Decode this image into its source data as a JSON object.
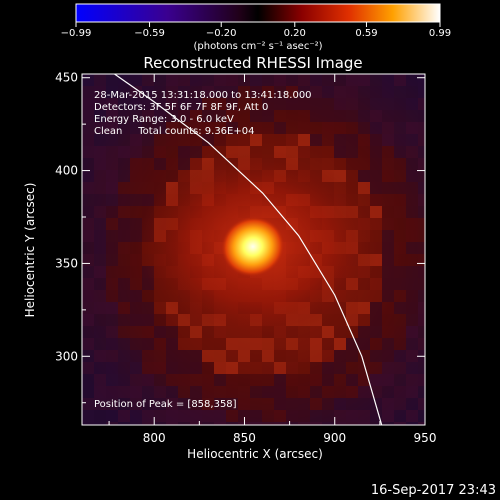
{
  "chart_data": {
    "type": "heatmap",
    "title": "Reconstructed RHESSI Image",
    "xlabel": "Heliocentric X (arcsec)",
    "ylabel": "Heliocentric Y (arcsec)",
    "xlim": [
      760,
      950
    ],
    "ylim": [
      263,
      452
    ],
    "x_ticks": [
      800,
      850,
      900,
      950
    ],
    "y_ticks": [
      300,
      350,
      400,
      450
    ],
    "colorbar": {
      "min": -0.99,
      "max": 0.99,
      "tick_values": [
        -0.99,
        -0.59,
        -0.2,
        0.2,
        0.59,
        0.99
      ],
      "tick_labels": [
        "−0.99",
        "−0.59",
        "−0.20",
        "0.20",
        "0.59",
        "0.99"
      ],
      "unit_label": "(photons cm⁻² s⁻¹ asec⁻²)",
      "colormap": "hot"
    },
    "info_lines": [
      "28-Mar-2015 13:31:18.000 to 13:41:18.000",
      "Detectors: 3F 5F 6F 7F 8F 9F, Att 0",
      "Energy Range: 3.0 - 6.0 keV",
      "Clean     Total counts: 9.36E+04"
    ],
    "peak": {
      "label": "Position of Peak = [858,358]",
      "x": 858,
      "y": 358
    },
    "limb_curve": [
      [
        778,
        452
      ],
      [
        800,
        437
      ],
      [
        830,
        415
      ],
      [
        860,
        388
      ],
      [
        880,
        365
      ],
      [
        900,
        333
      ],
      [
        915,
        300
      ],
      [
        926,
        263
      ]
    ]
  },
  "footer": {
    "timestamp": "16-Sep-2017 23:43"
  }
}
